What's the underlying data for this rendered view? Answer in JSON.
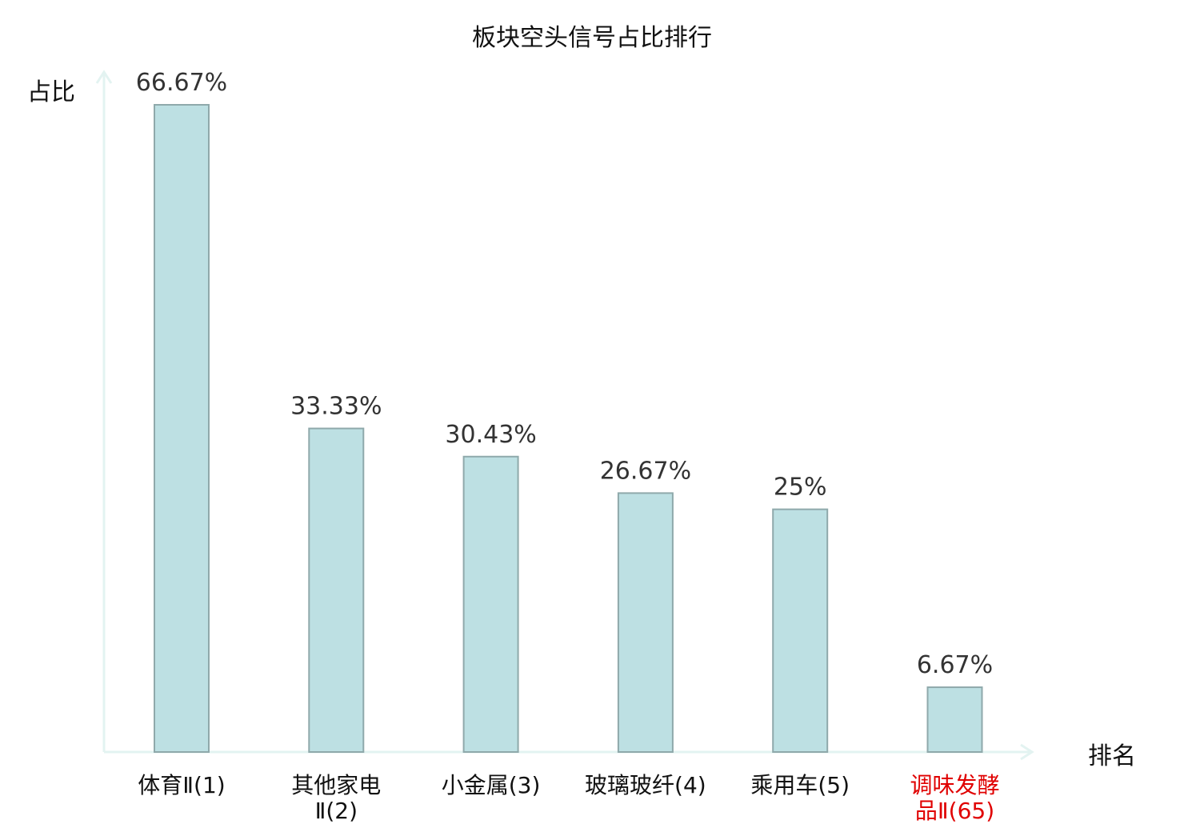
{
  "chart_data": {
    "type": "bar",
    "title": "板块空头信号占比排行",
    "xlabel": "排名",
    "ylabel": "占比",
    "categories": [
      "体育Ⅱ(1)",
      "其他家电Ⅱ(2)",
      "小金属(3)",
      "玻璃玻纤(4)",
      "乘用车(5)",
      "调味发酵品Ⅱ(65)"
    ],
    "category_lines": [
      [
        "体育Ⅱ(1)"
      ],
      [
        "其他家电",
        "Ⅱ(2)"
      ],
      [
        "小金属(3)"
      ],
      [
        "玻璃玻纤(4)"
      ],
      [
        "乘用车(5)"
      ],
      [
        "调味发酵",
        "品Ⅱ(65)"
      ]
    ],
    "values": [
      66.67,
      33.33,
      30.43,
      26.67,
      25,
      6.67
    ],
    "value_labels": [
      "66.67%",
      "33.33%",
      "30.43%",
      "26.67%",
      "25%",
      "6.67%"
    ],
    "highlight_index": 5,
    "ylim": [
      0,
      66.67
    ],
    "grid": false,
    "colors": {
      "bar_fill": "#bde0e3",
      "bar_stroke": "#8fa9ab",
      "axis": "#e3f3f1",
      "highlight_label": "#e00000",
      "value_label": "#333333"
    }
  }
}
